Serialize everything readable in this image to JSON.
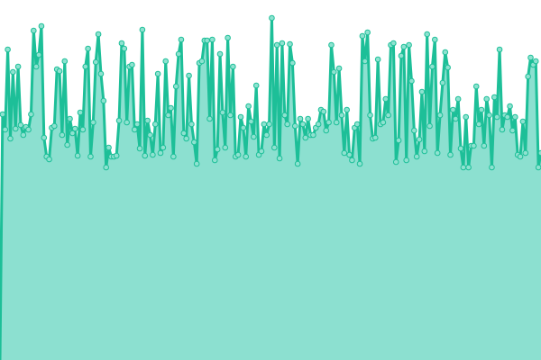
{
  "chart_data": {
    "type": "area",
    "title": "",
    "xlabel": "",
    "ylabel": "",
    "ylim": [
      0,
      400
    ],
    "grid": false,
    "axes_visible": false,
    "colors": {
      "line": "#1dbf98",
      "fill": "#8ce0d0",
      "marker_fill": "#8ee2d0",
      "marker_stroke": "#1dbf98"
    },
    "values": [
      0,
      273,
      256,
      345,
      246,
      320,
      257,
      326,
      261,
      250,
      259,
      256,
      273,
      366,
      326,
      339,
      371,
      247,
      226,
      223,
      258,
      260,
      323,
      321,
      250,
      332,
      239,
      268,
      252,
      257,
      227,
      275,
      256,
      326,
      346,
      226,
      264,
      331,
      362,
      318,
      288,
      214,
      236,
      226,
      226,
      227,
      266,
      352,
      346,
      264,
      326,
      328,
      256,
      262,
      235,
      367,
      227,
      266,
      250,
      228,
      262,
      318,
      230,
      236,
      332,
      272,
      280,
      226,
      304,
      340,
      356,
      252,
      246,
      316,
      262,
      242,
      218,
      330,
      332,
      355,
      355,
      268,
      356,
      222,
      234,
      340,
      275,
      236,
      358,
      272,
      326,
      226,
      228,
      270,
      258,
      226,
      282,
      265,
      248,
      305,
      228,
      232,
      262,
      250,
      262,
      380,
      236,
      350,
      224,
      352,
      272,
      262,
      351,
      330,
      260,
      218,
      268,
      262,
      247,
      268,
      250,
      250,
      258,
      262,
      278,
      276,
      255,
      264,
      350,
      320,
      264,
      324,
      272,
      230,
      278,
      228,
      222,
      258,
      262,
      218,
      360,
      332,
      364,
      272,
      246,
      247,
      334,
      262,
      264,
      290,
      272,
      350,
      352,
      220,
      244,
      338,
      348,
      222,
      350,
      310,
      255,
      226,
      245,
      298,
      232,
      362,
      260,
      326,
      356,
      230,
      272,
      308,
      342,
      325,
      228,
      278,
      268,
      290,
      235,
      214,
      270,
      214,
      238,
      238,
      304,
      262,
      278,
      238,
      290,
      272,
      214,
      292,
      270,
      345,
      256,
      272,
      270,
      282,
      255,
      270,
      228,
      226,
      265,
      230,
      315,
      336,
      328,
      332,
      214,
      230
    ]
  }
}
